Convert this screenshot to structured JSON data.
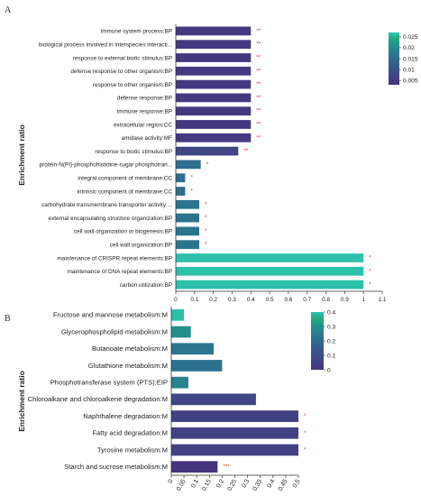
{
  "chart_data": [
    {
      "panel_label": "A",
      "type": "bar",
      "orientation": "horizontal",
      "ylabel": "Enrichment ratio",
      "xlim": [
        0,
        1.1
      ],
      "xticks": [
        "0",
        "0.1",
        "0.2",
        "0.3",
        "0.4",
        "0.5",
        "0.6",
        "0.7",
        "0.8",
        "0.9",
        "1",
        "1.1"
      ],
      "colorbar": {
        "min": 0.003,
        "max": 0.027,
        "ticks": [
          "0.025",
          "0.02",
          "0.015",
          "0.01",
          "0.005"
        ],
        "tick_values": [
          0.025,
          0.02,
          0.015,
          0.01,
          0.005
        ]
      },
      "color_scale": [
        "#46337e",
        "#3b528b",
        "#2c728e",
        "#21908d",
        "#27ad81",
        "#2ec6b6"
      ],
      "categories": [
        "immune system process:BP",
        "biological process involved in interspecies interacti...",
        "response to external biotic stimulus:BP",
        "defense response to other organism:BP",
        "response to other organism:BP",
        "defense response:BP",
        "immune response:BP",
        "extracellular region:CC",
        "amidase activity:MF",
        "response to biotic stimulus:BP",
        "protein-N(PI)-phosphohistidine-sugar phosphotran...",
        "integral component of membrane:CC",
        "intrinsic component of membrane:CC",
        "carbohydrate transmembrane transporter activity:...",
        "external encapsulating structure organization:BP",
        "cell wall organization or biogenesis:BP",
        "cell wall organization:BP",
        "maintenance of CRISPR repeat elements:BP",
        "maintenance of DNA repeat elements:BP",
        "carbon utilization:BP"
      ],
      "values": [
        0.4,
        0.4,
        0.4,
        0.4,
        0.4,
        0.4,
        0.4,
        0.4,
        0.4,
        0.333,
        0.133,
        0.05,
        0.05,
        0.125,
        0.125,
        0.125,
        0.125,
        1.0,
        1.0,
        1.0
      ],
      "pvalues": [
        0.004,
        0.004,
        0.004,
        0.004,
        0.004,
        0.004,
        0.004,
        0.004,
        0.004,
        0.006,
        0.012,
        0.012,
        0.012,
        0.013,
        0.013,
        0.013,
        0.013,
        0.026,
        0.026,
        0.026
      ],
      "significance": [
        "**",
        "**",
        "**",
        "**",
        "**",
        "**",
        "**",
        "**",
        "**",
        "**",
        "*",
        "*",
        "*",
        "*",
        "*",
        "*",
        "*",
        "*",
        "*",
        "*"
      ]
    },
    {
      "panel_label": "B",
      "type": "bar",
      "orientation": "horizontal",
      "ylabel": "Enrichment ratio",
      "xlim": [
        0,
        0.5
      ],
      "xticks": [
        "0",
        "0.05",
        "0.1",
        "0.15",
        "0.2",
        "0.25",
        "0.3",
        "0.35",
        "0.4",
        "0.45",
        "0.5"
      ],
      "colorbar": {
        "min": 0,
        "max": 0.4,
        "ticks": [
          "0.4",
          "0.3",
          "0.2",
          "0.1",
          "0"
        ],
        "tick_values": [
          0.4,
          0.3,
          0.2,
          0.1,
          0
        ]
      },
      "color_scale": [
        "#46337e",
        "#3b528b",
        "#2c728e",
        "#21908d",
        "#27ad81",
        "#2ec6b6"
      ],
      "categories": [
        "Fructose and mannose metabolism:M",
        "Glycerophospholipid metabolism:M",
        "Butanoate metabolism:M",
        "Glutathione metabolism:M",
        "Phosphotransferase system (PTS):EIP",
        "Chloroalkane and chloroalkene degradation:M",
        "Naphthalene degradation:M",
        "Fatty acid degradation:M",
        "Tyrosine metabolism:M",
        "Starch and sucrose metabolism:M"
      ],
      "values": [
        0.05,
        0.077,
        0.167,
        0.2,
        0.067,
        0.333,
        0.5,
        0.5,
        0.5,
        0.182
      ],
      "pvalues": [
        0.38,
        0.24,
        0.17,
        0.16,
        0.2,
        0.05,
        0.035,
        0.035,
        0.035,
        0.003
      ],
      "significance": [
        "",
        "",
        "",
        "",
        "",
        "",
        "*",
        "*",
        "*",
        "***"
      ]
    }
  ]
}
